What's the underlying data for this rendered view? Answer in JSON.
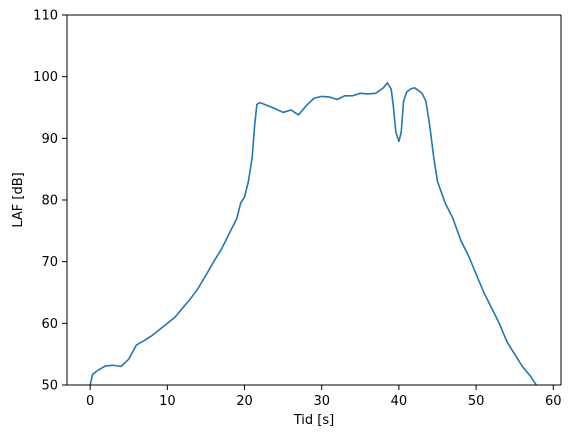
{
  "chart_data": {
    "type": "line",
    "title": "",
    "xlabel": "Tid [s]",
    "ylabel": "LAF [dB]",
    "xlim": [
      -3,
      61
    ],
    "ylim": [
      50,
      110
    ],
    "xticks": [
      0,
      10,
      20,
      30,
      40,
      50,
      60
    ],
    "yticks": [
      50,
      60,
      70,
      80,
      90,
      100,
      110
    ],
    "xtick_labels": [
      "0",
      "10",
      "20",
      "30",
      "40",
      "50",
      "60"
    ],
    "ytick_labels": [
      "50",
      "60",
      "70",
      "80",
      "90",
      "100",
      "110"
    ],
    "grid": false,
    "legend": "none",
    "series": [
      {
        "color": "#1f77b4",
        "x": [
          0,
          0.3,
          1,
          2,
          3,
          4,
          5,
          6,
          7,
          8,
          9,
          10,
          11,
          12,
          13,
          14,
          15,
          16,
          17,
          18,
          19,
          19.5,
          20,
          20.5,
          21,
          21.3,
          21.6,
          22,
          23,
          24,
          25,
          26,
          27,
          28,
          29,
          30,
          31,
          32,
          33,
          34,
          35,
          36,
          37,
          38,
          38.5,
          39,
          39.3,
          39.6,
          40,
          40.3,
          40.6,
          41,
          41.5,
          42,
          42.5,
          43,
          43.5,
          44,
          44.5,
          45,
          46,
          47,
          48,
          49,
          50,
          51,
          52,
          53,
          54,
          55,
          56,
          57,
          57.8
        ],
        "y": [
          50.0,
          51.7,
          52.4,
          53.1,
          53.2,
          53.0,
          54.2,
          56.5,
          57.2,
          58.0,
          59.0,
          60.0,
          61.0,
          62.5,
          64.0,
          65.7,
          67.8,
          70.0,
          72.0,
          74.5,
          77.0,
          79.5,
          80.5,
          83.0,
          87.0,
          92.0,
          95.5,
          95.8,
          95.3,
          94.8,
          94.2,
          94.6,
          93.8,
          95.3,
          96.5,
          96.8,
          96.7,
          96.3,
          96.9,
          96.9,
          97.3,
          97.2,
          97.3,
          98.2,
          99.0,
          98.0,
          95.0,
          91.0,
          89.5,
          91.0,
          96.0,
          97.5,
          98.0,
          98.2,
          97.8,
          97.3,
          96.0,
          92.0,
          87.0,
          83.0,
          79.5,
          77.0,
          73.5,
          71.0,
          68.0,
          65.0,
          62.5,
          60.0,
          57.0,
          55.0,
          53.0,
          51.5,
          50.0
        ]
      }
    ]
  }
}
